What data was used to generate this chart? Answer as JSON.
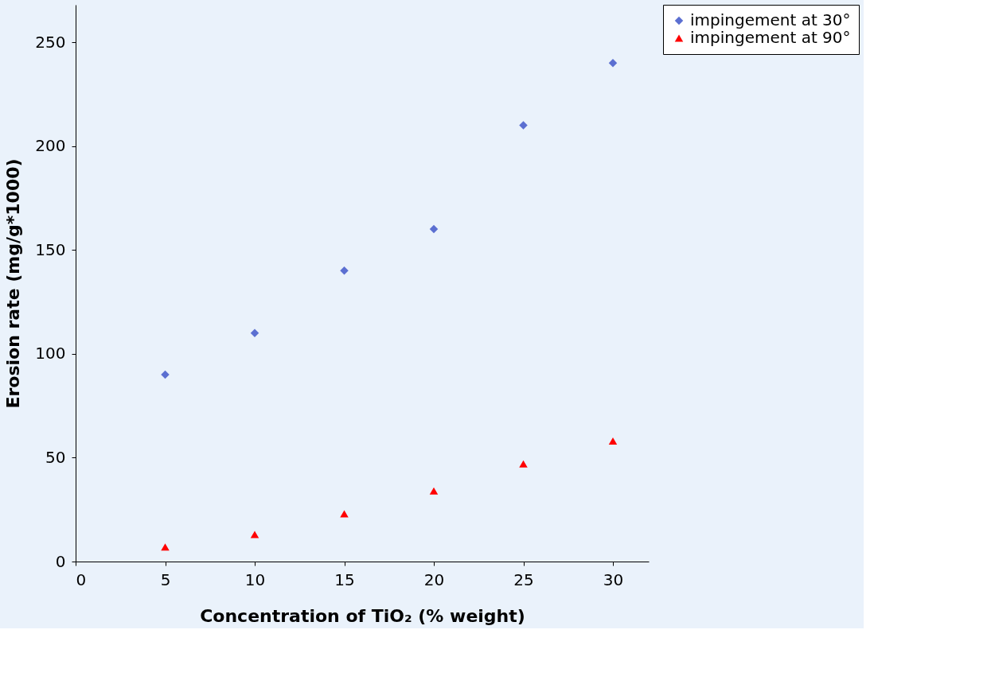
{
  "chart_data": {
    "type": "scatter",
    "xlabel": "Concentration of TiO₂ (% weight)",
    "ylabel": "Erosion rate (mg/g*1000)",
    "x": [
      5,
      10,
      15,
      20,
      25,
      30
    ],
    "series": [
      {
        "name": "impingement at 30°",
        "color": "#5b6fd1",
        "marker": "diamond",
        "values": [
          90,
          110,
          140,
          160,
          210,
          240
        ]
      },
      {
        "name": "impingement at 90°",
        "color": "#ff0000",
        "marker": "triangle",
        "values": [
          7,
          13,
          23,
          34,
          47,
          58
        ]
      }
    ],
    "xlim": [
      0,
      32
    ],
    "xticks": [
      0,
      5,
      10,
      15,
      20,
      25,
      30
    ],
    "ylim": [
      0,
      268
    ],
    "yticks": [
      0,
      50,
      100,
      150,
      200,
      250
    ],
    "grid": false,
    "legend": "right"
  }
}
